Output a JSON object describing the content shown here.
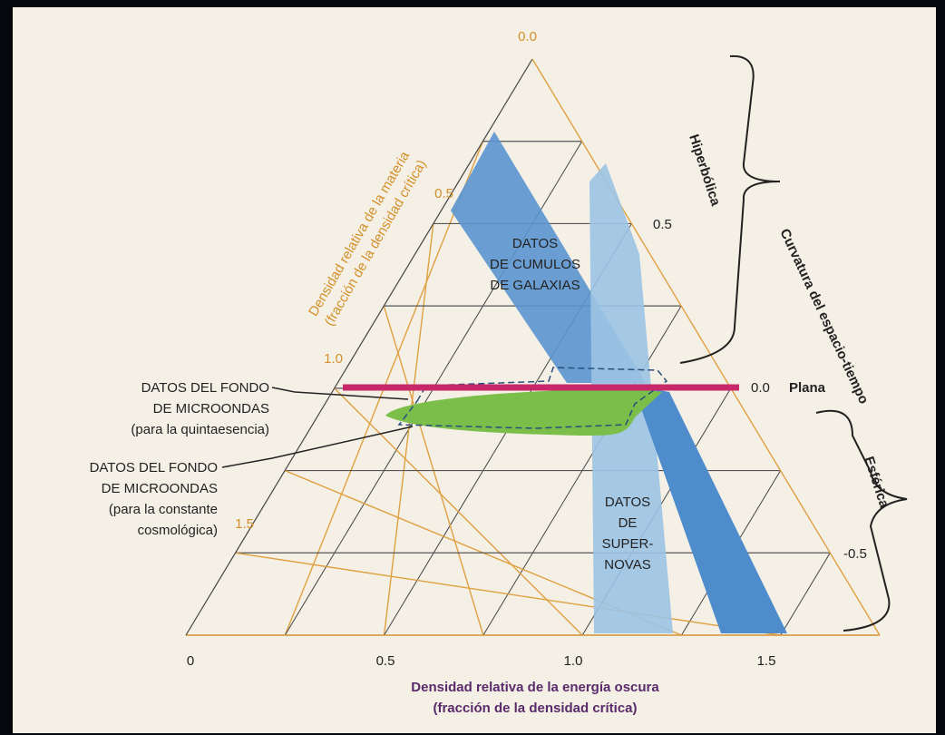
{
  "matter_axis": {
    "title": "Densidad relativa de la materia",
    "subtitle": "(fracción de la densidad crítica)",
    "ticks": [
      "0.0",
      "0.5",
      "1.0",
      "1.5"
    ]
  },
  "energy_axis": {
    "title": "Densidad relativa de la energía oscura",
    "subtitle": "(fracción de la densidad crítica)",
    "ticks": [
      "0",
      "0.5",
      "1.0",
      "1.5"
    ]
  },
  "curvature_axis": {
    "title": "Curvatura del espacio-tiempo",
    "ticks": [
      "0.5",
      "0.0",
      "-0.5"
    ],
    "flat": "Plana",
    "hyperbolic": "Hiperbólica",
    "spherical": "Esférica"
  },
  "regions": {
    "clusters": [
      "DATOS",
      "DE CUMULOS",
      "DE GALAXIAS"
    ],
    "supernovae": [
      "DATOS",
      "DE",
      "SUPER-",
      "NOVAS"
    ]
  },
  "callouts": [
    {
      "lines": [
        "DATOS DEL FONDO",
        "DE MICROONDAS",
        "(para la quintaesencia)"
      ]
    },
    {
      "lines": [
        "DATOS DEL FONDO",
        "DE MICROONDAS",
        "(para la constante",
        "cosmológica)"
      ]
    }
  ]
}
